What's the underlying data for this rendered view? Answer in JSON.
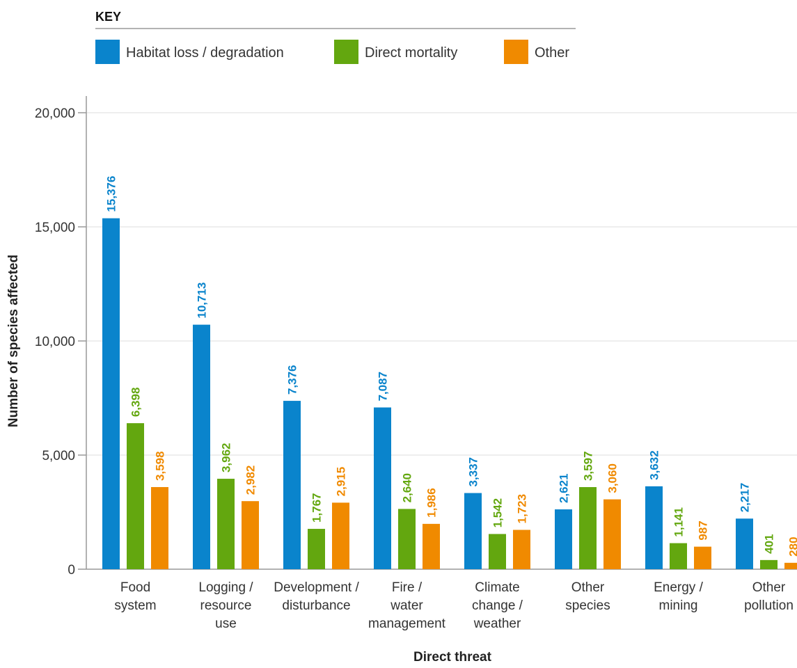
{
  "chart_data": {
    "type": "bar",
    "key_title": "KEY",
    "xlabel": "Direct threat",
    "ylabel": "Number of species affected",
    "ylim": [
      0,
      20000
    ],
    "yticks": [
      0,
      5000,
      10000,
      15000,
      20000
    ],
    "ytick_labels": [
      "0",
      "5,000",
      "10,000",
      "15,000",
      "20,000"
    ],
    "grid": true,
    "legend_position": "top-left",
    "categories": [
      [
        "Food",
        "system"
      ],
      [
        "Logging /",
        "resource",
        "use"
      ],
      [
        "Development /",
        "disturbance"
      ],
      [
        "Fire /",
        "water",
        "management"
      ],
      [
        "Climate",
        "change /",
        "weather"
      ],
      [
        "Other",
        "species"
      ],
      [
        "Energy /",
        "mining"
      ],
      [
        "Other",
        "pollution"
      ]
    ],
    "series": [
      {
        "name": "Habitat loss / degradation",
        "color": "#0a84cc",
        "values": [
          15376,
          10713,
          7376,
          7087,
          3337,
          2621,
          3632,
          2217
        ],
        "labels": [
          "15,376",
          "10,713",
          "7,376",
          "7,087",
          "3,337",
          "2,621",
          "3,632",
          "2,217"
        ]
      },
      {
        "name": "Direct mortality",
        "color": "#63a70f",
        "values": [
          6398,
          3962,
          1767,
          2640,
          1542,
          3597,
          1141,
          401
        ],
        "labels": [
          "6,398",
          "3,962",
          "1,767",
          "2,640",
          "1,542",
          "3,597",
          "1,141",
          "401"
        ]
      },
      {
        "name": "Other",
        "color": "#f08a00",
        "values": [
          3598,
          2982,
          2915,
          1986,
          1723,
          3060,
          987,
          280
        ],
        "labels": [
          "3,598",
          "2,982",
          "2,915",
          "1,986",
          "1,723",
          "3,060",
          "987",
          "280"
        ]
      }
    ]
  }
}
